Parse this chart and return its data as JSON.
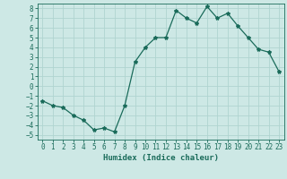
{
  "x": [
    0,
    1,
    2,
    3,
    4,
    5,
    6,
    7,
    8,
    9,
    10,
    11,
    12,
    13,
    14,
    15,
    16,
    17,
    18,
    19,
    20,
    21,
    22,
    23
  ],
  "y": [
    -1.5,
    -2.0,
    -2.2,
    -3.0,
    -3.5,
    -4.5,
    -4.3,
    -4.7,
    -2.0,
    2.5,
    4.0,
    5.0,
    5.0,
    7.8,
    7.0,
    6.5,
    8.2,
    7.0,
    7.5,
    6.2,
    5.0,
    3.8,
    3.5,
    1.5
  ],
  "line_color": "#1a6b5a",
  "marker": "*",
  "marker_size": 3,
  "bg_color": "#cde8e5",
  "grid_color": "#b0d4d0",
  "xlabel": "Humidex (Indice chaleur)",
  "xlim": [
    -0.5,
    23.5
  ],
  "ylim": [
    -5.5,
    8.5
  ],
  "yticks": [
    -5,
    -4,
    -3,
    -2,
    -1,
    0,
    1,
    2,
    3,
    4,
    5,
    6,
    7,
    8
  ],
  "xticks": [
    0,
    1,
    2,
    3,
    4,
    5,
    6,
    7,
    8,
    9,
    10,
    11,
    12,
    13,
    14,
    15,
    16,
    17,
    18,
    19,
    20,
    21,
    22,
    23
  ],
  "tick_fontsize": 5.5,
  "xlabel_fontsize": 6.5
}
